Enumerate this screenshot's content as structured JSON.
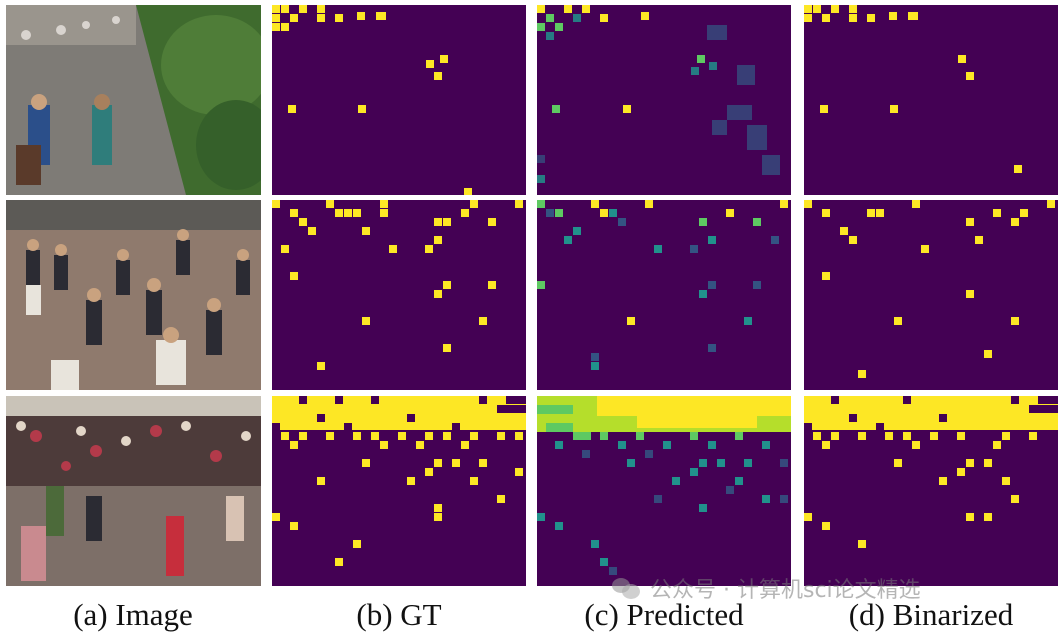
{
  "figure": {
    "columns": [
      {
        "key": "image",
        "caption": "(a) Image"
      },
      {
        "key": "gt",
        "caption": "(b) GT"
      },
      {
        "key": "predicted",
        "caption": "(c) Predicted"
      },
      {
        "key": "binarized",
        "caption": "(d) Binarized"
      }
    ],
    "rows": [
      {
        "scene": "shopping street walkway with trees and pedestrians"
      },
      {
        "scene": "busy plaza with many pedestrians viewed from above"
      },
      {
        "scene": "dense crowd at a station entrance with guards"
      }
    ],
    "colormap": {
      "background": "#440154",
      "mid_low": "#31688e",
      "mid": "#21918c",
      "mid_high": "#5ec962",
      "high": "#fde725"
    }
  },
  "watermark": {
    "text": "公众号 · 计算机sci论文精选",
    "icon": "wechat-icon"
  }
}
